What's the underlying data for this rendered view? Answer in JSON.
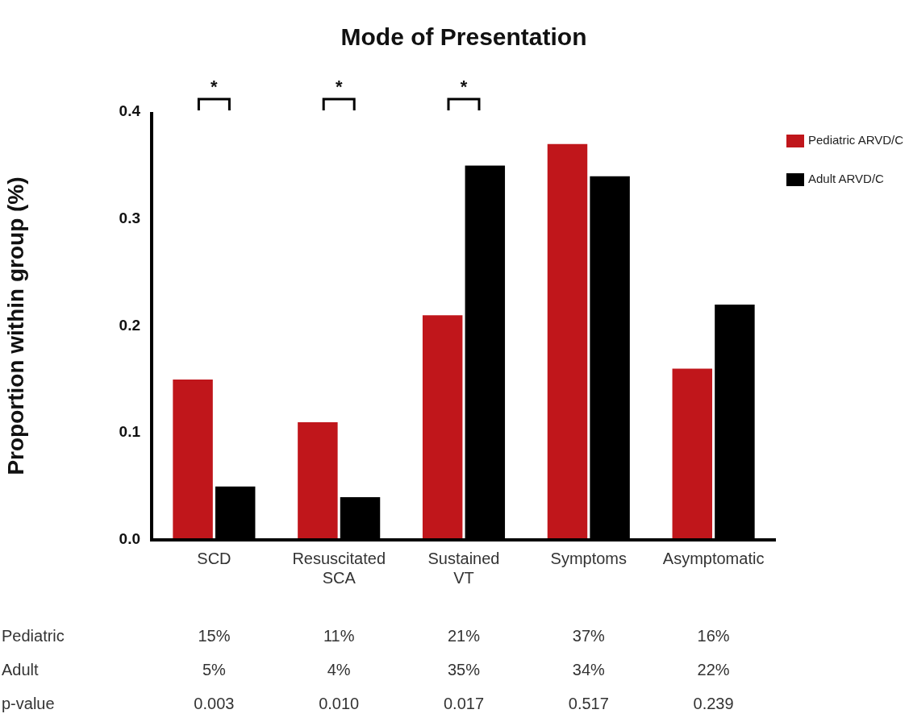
{
  "chart_data": {
    "type": "bar",
    "title": "Mode of Presentation",
    "ylabel": "Proportion within group (%)",
    "categories": [
      "SCD",
      "Resuscitated SCA",
      "Sustained VT",
      "Symptoms",
      "Asymptomatic"
    ],
    "series": [
      {
        "name": "Pediatric ARVD/C",
        "color": "#c0161b",
        "values": [
          0.15,
          0.11,
          0.21,
          0.37,
          0.16
        ],
        "value_labels": [
          "15%",
          "11%",
          "21%",
          "37%",
          "16%"
        ]
      },
      {
        "name": "Adult ARVD/C",
        "color": "#000000",
        "values": [
          0.05,
          0.04,
          0.35,
          0.34,
          0.22
        ],
        "value_labels": [
          "5%",
          "4%",
          "35%",
          "34%",
          "22%"
        ]
      }
    ],
    "ylim": [
      0,
      0.4
    ],
    "yticks": [
      {
        "value": 0,
        "label": "0.0"
      },
      {
        "value": 0.1,
        "label": "0.1"
      },
      {
        "value": 0.2,
        "label": "0.2"
      },
      {
        "value": 0.3,
        "label": "0.3"
      },
      {
        "value": 0.4,
        "label": "0.4"
      }
    ],
    "grid": false,
    "legend": "top right",
    "annotations": [
      "Pediatric",
      "Adult",
      "p-value",
      "*",
      "*",
      "*",
      "0.003",
      "0.010",
      "0.017",
      "0.517",
      "0.239"
    ]
  }
}
